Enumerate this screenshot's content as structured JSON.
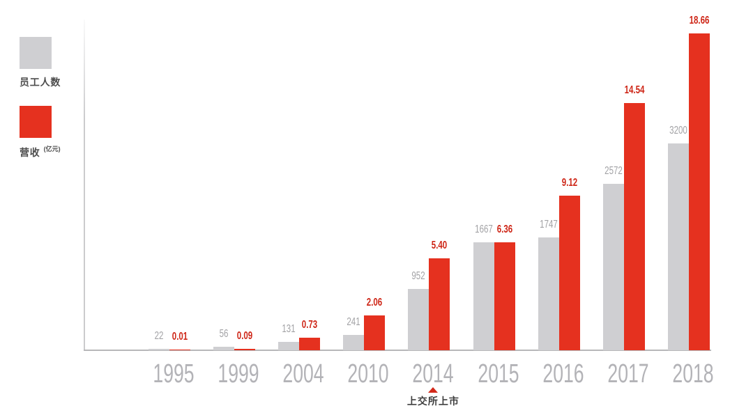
{
  "chart_data": {
    "type": "bar",
    "categories": [
      "1995",
      "1999",
      "2004",
      "2010",
      "2014",
      "2015",
      "2016",
      "2017",
      "2018"
    ],
    "series": [
      {
        "name": "员工人数",
        "key": "employees",
        "values": [
          22,
          56,
          131,
          241,
          952,
          1667,
          1747,
          2572,
          3200
        ],
        "color": "#cfcfd2",
        "label_color": "#a2a2a5",
        "ylim": [
          0,
          4900
        ],
        "label_format": "integer"
      },
      {
        "name": "营收",
        "key": "revenue",
        "unit": "(亿元)",
        "values": [
          0.01,
          0.09,
          0.73,
          2.06,
          5.4,
          6.36,
          9.12,
          14.54,
          18.66
        ],
        "color": "#e5311f",
        "label_color": "#ce2617",
        "ylim": [
          0,
          18.66
        ],
        "label_format": "2dp"
      }
    ],
    "title": "",
    "grid": false,
    "legend_position": "top-left",
    "annotation": {
      "text": "上交所上市",
      "category": "2014",
      "marker": "red-triangle-up",
      "marker_color": "#d3291a"
    }
  },
  "legend": {
    "items": [
      {
        "label": "员工人数",
        "color": "#cfcfd2"
      },
      {
        "label": "营收",
        "suffix": "(亿元)",
        "color": "#e5311f"
      }
    ]
  }
}
